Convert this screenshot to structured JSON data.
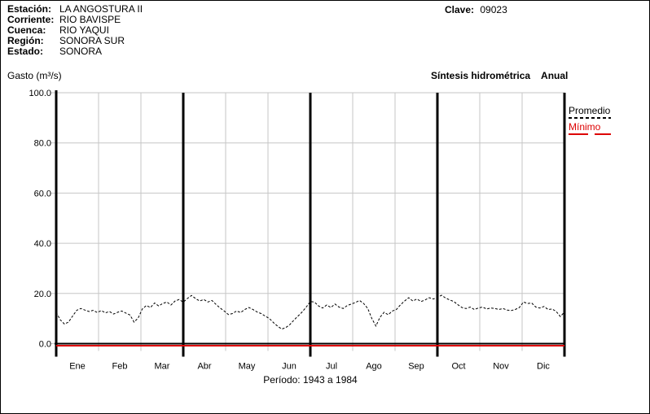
{
  "header": {
    "fields": [
      {
        "label": "Estación:",
        "value": "LA ANGOSTURA II"
      },
      {
        "label": "Corriente:",
        "value": "RIO BAVISPE"
      },
      {
        "label": "Cuenca:",
        "value": "RIO YAQUI"
      },
      {
        "label": "Región:",
        "value": "SONORA SUR"
      },
      {
        "label": "Estado:",
        "value": "SONORA"
      }
    ],
    "clave_label": "Clave:",
    "clave_value": "09023"
  },
  "chart": {
    "y_axis_label": "Gasto (m³/s)",
    "title": "Síntesis hidrométrica",
    "title_right": "Anual",
    "footer": "Período: 1943 a 1984",
    "legend": [
      {
        "label": "Promedio",
        "color": "#000000",
        "style": "dashed"
      },
      {
        "label": "Mínimo",
        "color": "#dd0000",
        "style": "solid"
      }
    ]
  },
  "chart_data": {
    "type": "line",
    "title": "Síntesis hidrométrica Anual",
    "station": "LA ANGOSTURA II",
    "ylabel": "Gasto (m³/s)",
    "xlabel": "",
    "ylim": [
      0,
      100
    ],
    "yticks": [
      0,
      20,
      40,
      60,
      80,
      100
    ],
    "months": [
      "Ene",
      "Feb",
      "Mar",
      "Abr",
      "May",
      "Jun",
      "Jul",
      "Ago",
      "Sep",
      "Oct",
      "Nov",
      "Dic"
    ],
    "grid": true,
    "legend_position": "right",
    "period": "1943 a 1984",
    "colors": {
      "grid": "#c6c6c6",
      "axis": "#000000",
      "minimo": "#dd0000",
      "promedio": "#000000"
    },
    "series": [
      {
        "name": "Promedio",
        "style": "dashed",
        "color": "#000000",
        "values": [
          12.5,
          9.5,
          7.8,
          8.6,
          11.0,
          13.3,
          14.0,
          13.4,
          12.8,
          13.3,
          12.4,
          13.2,
          12.3,
          12.8,
          11.8,
          12.5,
          13.0,
          12.2,
          11.4,
          8.6,
          10.2,
          13.8,
          15.2,
          14.4,
          16.2,
          15.0,
          16.0,
          16.6,
          15.4,
          17.0,
          17.6,
          16.5,
          18.0,
          19.2,
          18.0,
          17.0,
          17.6,
          16.6,
          17.2,
          15.6,
          14.2,
          13.0,
          11.6,
          12.0,
          13.0,
          12.4,
          13.6,
          14.4,
          13.6,
          12.6,
          12.0,
          11.0,
          10.0,
          8.4,
          7.0,
          5.8,
          6.4,
          7.6,
          9.4,
          11.0,
          12.6,
          14.6,
          16.8,
          16.6,
          15.0,
          14.2,
          15.4,
          14.4,
          15.8,
          14.6,
          14.0,
          15.2,
          15.8,
          16.4,
          17.2,
          16.0,
          14.0,
          10.0,
          7.0,
          10.5,
          12.5,
          11.5,
          13.0,
          13.6,
          15.5,
          17.0,
          18.3,
          17.0,
          17.8,
          16.8,
          17.4,
          18.3,
          17.8,
          18.4,
          19.3,
          18.2,
          17.4,
          16.8,
          15.5,
          14.4,
          14.0,
          14.6,
          13.6,
          14.2,
          14.6,
          13.8,
          14.2,
          14.0,
          13.6,
          14.0,
          13.4,
          13.2,
          13.6,
          14.4,
          16.6,
          16.0,
          16.2,
          14.6,
          14.2,
          14.8,
          13.6,
          13.8,
          12.8,
          10.8,
          12.6
        ]
      },
      {
        "name": "Mínimo",
        "style": "solid",
        "color": "#dd0000",
        "constant_value": 0.0
      }
    ]
  }
}
